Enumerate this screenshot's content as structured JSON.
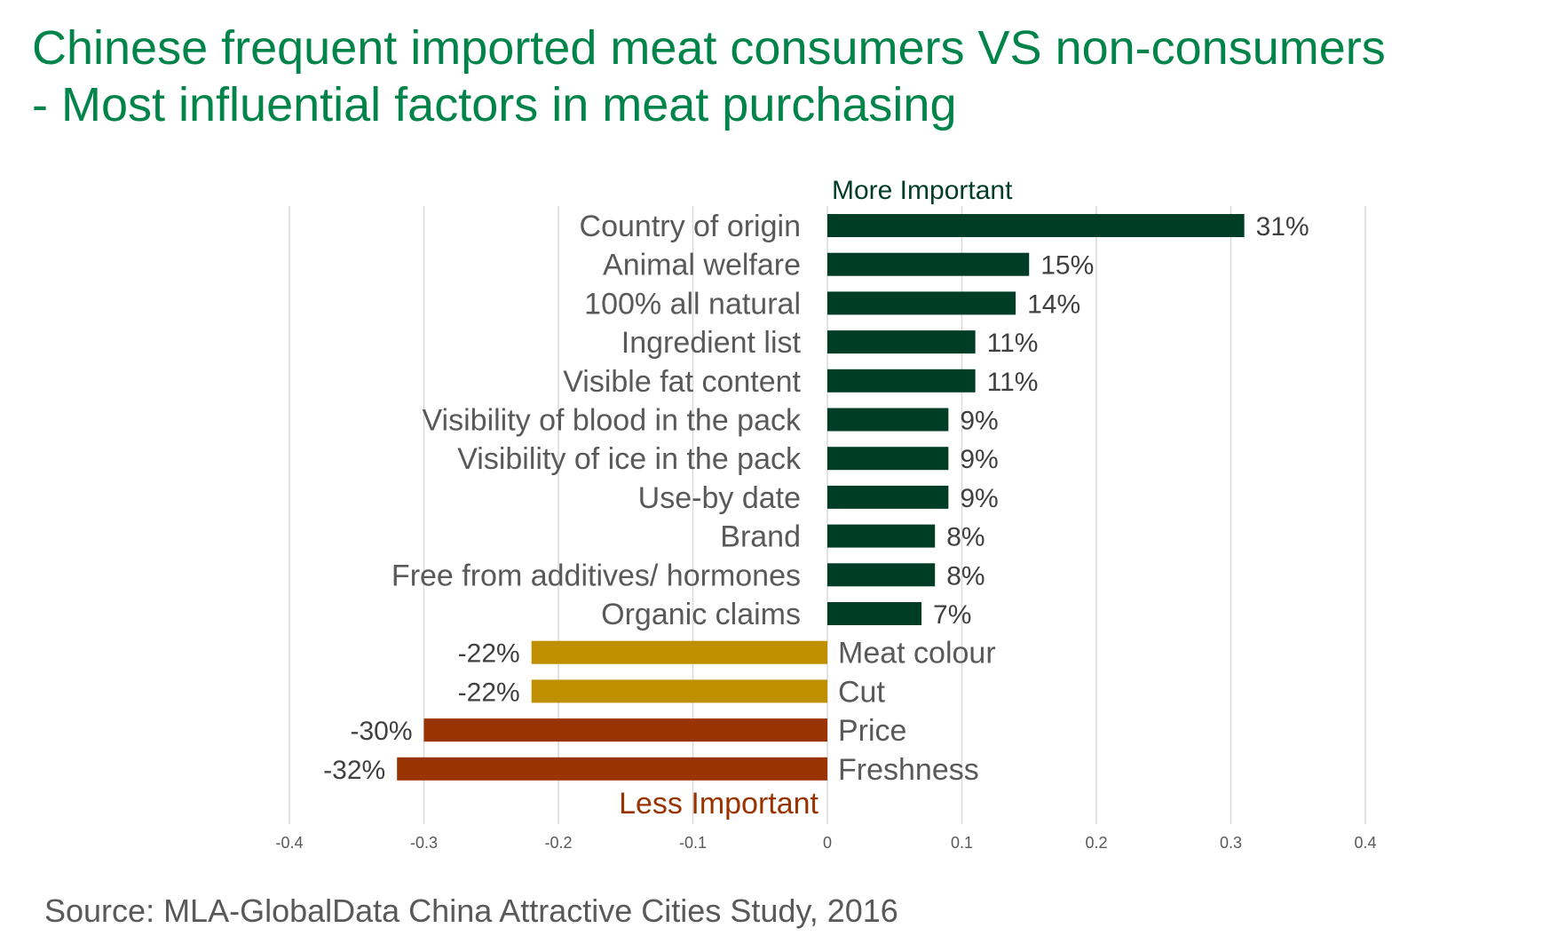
{
  "title": {
    "line1": "Chinese frequent imported meat consumers VS non-consumers",
    "line2": "- Most influential factors in meat purchasing"
  },
  "source": "Source: MLA-GlobalData China Attractive Cities Study, 2016",
  "chart_data": {
    "type": "bar",
    "orientation": "horizontal",
    "annotations": {
      "top": "More Important",
      "bottom": "Less Important"
    },
    "categories": [
      "Country of origin",
      "Animal welfare",
      "100% all natural",
      "Ingredient list",
      "Visible fat content",
      "Visibility of blood in the pack",
      "Visibility of ice in the pack",
      "Use-by date",
      "Brand",
      "Free from additives/ hormones",
      "Organic claims",
      "Meat colour",
      "Cut",
      "Price",
      "Freshness"
    ],
    "values": [
      0.31,
      0.15,
      0.14,
      0.11,
      0.11,
      0.09,
      0.09,
      0.09,
      0.08,
      0.08,
      0.07,
      -0.22,
      -0.22,
      -0.3,
      -0.32
    ],
    "data_labels": [
      "31%",
      "15%",
      "14%",
      "11%",
      "11%",
      "9%",
      "9%",
      "9%",
      "8%",
      "8%",
      "7%",
      "-22%",
      "-22%",
      "-30%",
      "-32%"
    ],
    "bar_colors": [
      "#003d27",
      "#003d27",
      "#003d27",
      "#003d27",
      "#003d27",
      "#003d27",
      "#003d27",
      "#003d27",
      "#003d27",
      "#003d27",
      "#003d27",
      "#bf8f00",
      "#bf8f00",
      "#993300",
      "#993300"
    ],
    "xlim": [
      -0.4,
      0.4
    ],
    "xticks": [
      -0.4,
      -0.3,
      -0.2,
      -0.1,
      0,
      0.1,
      0.2,
      0.3,
      0.4
    ],
    "xtick_labels": [
      "-0.4",
      "-0.3",
      "-0.2",
      "-0.1",
      "0",
      "0.1",
      "0.2",
      "0.3",
      "0.4"
    ],
    "grid": true,
    "colors": {
      "positive": "#003d27",
      "gold": "#bf8f00",
      "rust": "#993300",
      "title": "#00844a",
      "label": "#595959",
      "top_annotation": "#003d27",
      "bottom_annotation": "#993300",
      "grid": "#d9d9d9"
    }
  }
}
